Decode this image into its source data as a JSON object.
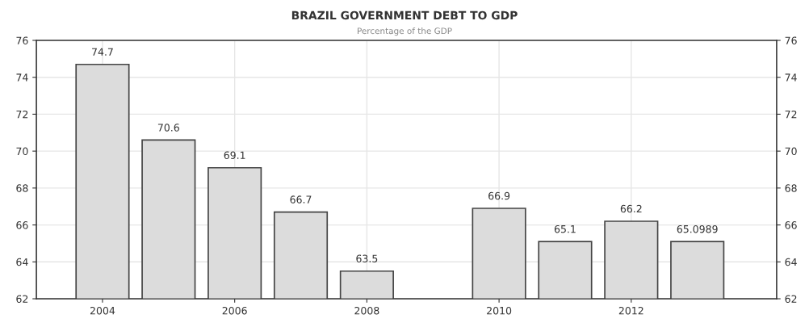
{
  "chart_data": {
    "type": "bar",
    "title": "BRAZIL GOVERNMENT DEBT TO GDP",
    "subtitle": "Percentage of the GDP",
    "x": [
      2004,
      2005,
      2006,
      2007,
      2008,
      2010,
      2011,
      2012,
      2013
    ],
    "values": [
      74.7,
      70.6,
      69.1,
      66.7,
      63.5,
      66.9,
      65.1,
      66.2,
      65.0989
    ],
    "color": "#dcdcdc",
    "xlim": [
      2003,
      2014.2
    ],
    "xticks": [
      2004,
      2006,
      2008,
      2010,
      2012
    ],
    "ylim": [
      62,
      76
    ],
    "yticks": [
      62,
      64,
      66,
      68,
      70,
      72,
      74,
      76
    ],
    "y2lim": [
      62,
      76
    ],
    "y2ticks": [
      62,
      64,
      66,
      68,
      70,
      72,
      74,
      76
    ],
    "grid": true,
    "data_labels": true
  }
}
